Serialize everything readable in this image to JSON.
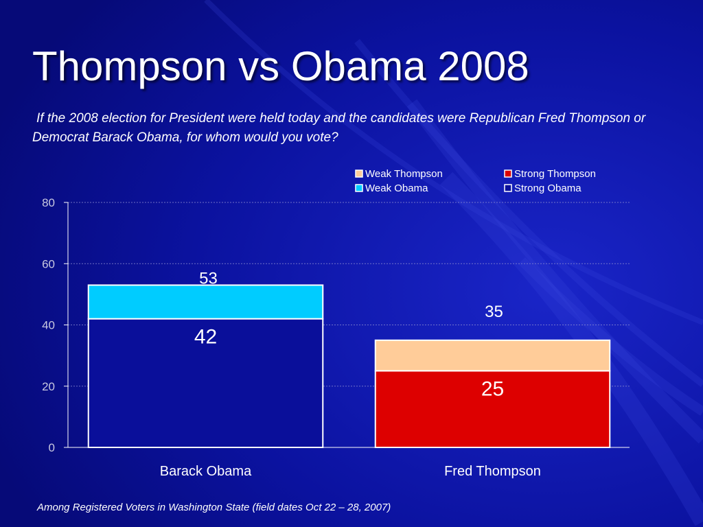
{
  "slide": {
    "title": "Thompson vs Obama 2008",
    "question": "If the 2008 election for President were held today and the candidates were Republican Fred Thompson or Democrat Barack Obama, for whom would you vote?",
    "footnote": "Among Registered Voters in Washington State (field dates Oct 22 – 28, 2007)"
  },
  "colors": {
    "background": "#0a0f9a",
    "strong_obama": "#0a0f9a",
    "weak_obama": "#00ccff",
    "strong_thompson": "#dd0000",
    "weak_thompson": "#ffcc99",
    "text": "#ffffff",
    "axis_text": "#c8c8e0"
  },
  "chart_data": {
    "type": "bar",
    "stacked": true,
    "categories": [
      "Barack Obama",
      "Fred Thompson"
    ],
    "series": [
      {
        "name": "Strong Obama",
        "values": [
          42,
          0
        ]
      },
      {
        "name": "Weak Obama",
        "values": [
          11,
          0
        ]
      },
      {
        "name": "Strong Thompson",
        "values": [
          0,
          25
        ]
      },
      {
        "name": "Weak Thompson",
        "values": [
          0,
          10
        ]
      }
    ],
    "data_labels": [
      {
        "category": "Barack Obama",
        "inner": "42",
        "total": "53"
      },
      {
        "category": "Fred Thompson",
        "inner": "25",
        "total": "35"
      }
    ],
    "legend": [
      {
        "name": "Weak Thompson",
        "color": "#ffcc99"
      },
      {
        "name": "Strong Thompson",
        "color": "#dd0000"
      },
      {
        "name": "Weak Obama",
        "color": "#00ccff"
      },
      {
        "name": "Strong Obama",
        "color": "#0a0f9a"
      }
    ],
    "legend_position": "top-right",
    "yticks": [
      "0",
      "20",
      "40",
      "60",
      "80"
    ],
    "ylim": [
      0,
      80
    ],
    "grid": true,
    "xlabel": "",
    "ylabel": ""
  }
}
